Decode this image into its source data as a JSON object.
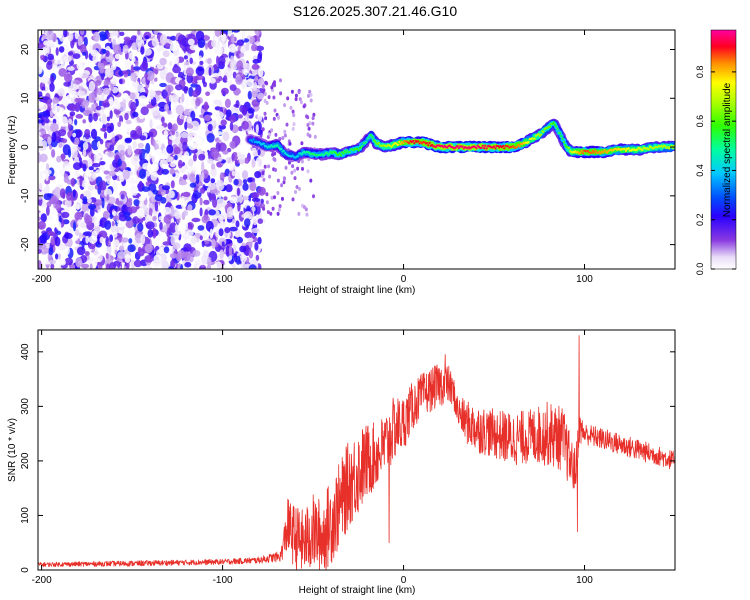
{
  "title": "S126.2025.307.21.46.G10",
  "colors": {
    "snr_line": "#e8302a",
    "axes": "#000000",
    "background": "#ffffff"
  },
  "chart_data": [
    {
      "type": "heatmap",
      "xlabel": "Height of straight line (km)",
      "ylabel": "Frequency (Hz)",
      "xlim": [
        -202,
        150
      ],
      "ylim": [
        -25,
        24
      ],
      "xticks": [
        -200,
        -100,
        0,
        100
      ],
      "yticks": [
        -20,
        -10,
        0,
        10,
        20
      ],
      "colorbar": {
        "label": "Normalized spectral amplitude",
        "range": [
          0.0,
          0.97
        ],
        "ticks": [
          "0.0",
          "0.2",
          "0.4",
          "0.6",
          "0.8"
        ],
        "tick_values": [
          0.0,
          0.2,
          0.4,
          0.6,
          0.8
        ]
      },
      "noise_region_x": [
        -202,
        -78
      ],
      "ridge": {
        "x": [
          -85,
          -80,
          -75,
          -70,
          -65,
          -60,
          -55,
          -50,
          -45,
          -40,
          -35,
          -30,
          -25,
          -20,
          -18,
          -15,
          -10,
          -5,
          0,
          5,
          10,
          20,
          30,
          40,
          50,
          60,
          65,
          70,
          75,
          80,
          83,
          86,
          90,
          93,
          100,
          110,
          120,
          130,
          140,
          150
        ],
        "freq": [
          1.5,
          1.0,
          0.0,
          0.5,
          -1.5,
          -2.0,
          -1.0,
          -1.5,
          -1.5,
          -1.2,
          -1.5,
          -0.8,
          -0.5,
          1.5,
          2.5,
          0.8,
          0.0,
          0.5,
          1.0,
          1.0,
          1.0,
          0.0,
          0.0,
          0.0,
          0.0,
          0.0,
          0.5,
          1.5,
          2.5,
          4.0,
          5.0,
          3.0,
          0.0,
          -1.0,
          -1.0,
          -1.0,
          -0.5,
          -0.5,
          0.0,
          0.0
        ],
        "amplitude": [
          0.35,
          0.4,
          0.45,
          0.5,
          0.45,
          0.4,
          0.5,
          0.55,
          0.5,
          0.55,
          0.6,
          0.55,
          0.6,
          0.5,
          0.55,
          0.65,
          0.7,
          0.75,
          0.85,
          0.95,
          0.9,
          0.97,
          0.97,
          0.97,
          0.95,
          0.9,
          0.85,
          0.75,
          0.7,
          0.65,
          0.6,
          0.55,
          0.6,
          0.75,
          0.9,
          0.85,
          0.8,
          0.75,
          0.7,
          0.7
        ]
      }
    },
    {
      "type": "line",
      "xlabel": "Height of straight line (km)",
      "ylabel": "SNR (10 * v/v)",
      "xlim": [
        -202,
        150
      ],
      "ylim": [
        0,
        440
      ],
      "xticks": [
        -200,
        -100,
        0,
        100
      ],
      "yticks": [
        0,
        100,
        200,
        300,
        400
      ],
      "series": [
        {
          "name": "SNR",
          "x": [
            -202,
            -150,
            -100,
            -80,
            -68,
            -64,
            -60,
            -55,
            -50,
            -45,
            -40,
            -35,
            -30,
            -25,
            -20,
            -15,
            -10,
            -5,
            0,
            5,
            10,
            15,
            20,
            25,
            28,
            30,
            35,
            40,
            50,
            60,
            70,
            80,
            88,
            92,
            95,
            97,
            100,
            110,
            120,
            130,
            140,
            150
          ],
          "mean": [
            10,
            12,
            15,
            18,
            25,
            80,
            60,
            50,
            70,
            60,
            90,
            120,
            160,
            180,
            200,
            210,
            230,
            260,
            270,
            300,
            320,
            330,
            340,
            340,
            320,
            290,
            270,
            260,
            250,
            240,
            245,
            250,
            240,
            200,
            180,
            260,
            250,
            240,
            230,
            220,
            210,
            200
          ],
          "amp": [
            4,
            5,
            5,
            6,
            10,
            50,
            60,
            60,
            70,
            70,
            80,
            80,
            80,
            80,
            70,
            60,
            60,
            60,
            50,
            45,
            40,
            40,
            40,
            35,
            30,
            30,
            40,
            45,
            45,
            50,
            50,
            60,
            60,
            50,
            40,
            30,
            20,
            20,
            20,
            20,
            18,
            18
          ],
          "spikes": [
            {
              "x": 97,
              "y": 430
            },
            {
              "x": 96,
              "y": 70
            },
            {
              "x": 23,
              "y": 395
            },
            {
              "x": -1,
              "y": 270
            },
            {
              "x": -64,
              "y": 130
            },
            {
              "x": -8,
              "y": 50
            }
          ]
        }
      ]
    }
  ]
}
